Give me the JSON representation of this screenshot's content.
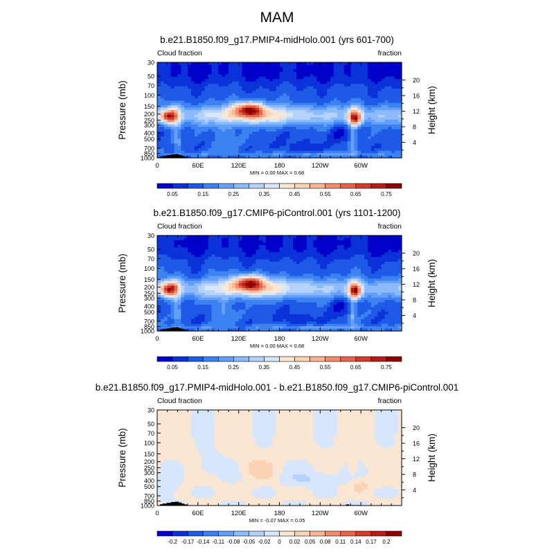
{
  "figure": {
    "title": "MAM",
    "background": "#ffffff"
  },
  "chart_data": [
    {
      "type": "heatmap",
      "title": "b.e21.B1850.f09_g17.PMIP4-midHolo.001 (yrs 601-700)",
      "left_label": "Cloud fraction",
      "right_label": "fraction",
      "ylabel": "Pressure (mb)",
      "y2label": "Height (km)",
      "x_ticks": [
        "0",
        "60E",
        "120E",
        "180",
        "120W",
        "60W"
      ],
      "x_tick_values": [
        0,
        60,
        120,
        180,
        240,
        300
      ],
      "xlim": [
        0,
        360
      ],
      "y_ticks": [
        "30",
        "50",
        "70",
        "100",
        "150",
        "200",
        "250",
        "300",
        "400",
        "500",
        "700",
        "850",
        "1000"
      ],
      "y_tick_values": [
        30,
        50,
        70,
        100,
        150,
        200,
        250,
        300,
        400,
        500,
        700,
        850,
        1000
      ],
      "ylim": [
        30,
        1000
      ],
      "y_scale": "log",
      "y2_ticks": [
        "20",
        "16",
        "12",
        "8",
        "4"
      ],
      "y2_tick_values": [
        20,
        16,
        12,
        8,
        4
      ],
      "stats": "MIN =   0.00  MAX =   0.68",
      "colorbar_labels": [
        "0.05",
        "0.15",
        "0.25",
        "0.35",
        "0.45",
        "0.55",
        "0.65",
        "0.75"
      ],
      "colorbar_colors": [
        "#0000c8",
        "#0a32d8",
        "#1e5ae6",
        "#3c82f0",
        "#64a0fa",
        "#8cbafa",
        "#b4d2fa",
        "#d7e6fa",
        "#fae6d2",
        "#fad2b4",
        "#fab496",
        "#f08c6e",
        "#e6644b",
        "#d23c28",
        "#b41e14",
        "#8c0000"
      ],
      "colorbar_levels": [
        0.05,
        0.1,
        0.15,
        0.2,
        0.25,
        0.3,
        0.35,
        0.4,
        0.45,
        0.5,
        0.55,
        0.6,
        0.65,
        0.7,
        0.75
      ],
      "min": 0.0,
      "max": 0.68
    },
    {
      "type": "heatmap",
      "title": "b.e21.B1850.f09_g17.CMIP6-piControl.001 (yrs 1101-1200)",
      "left_label": "Cloud fraction",
      "right_label": "fraction",
      "ylabel": "Pressure (mb)",
      "y2label": "Height (km)",
      "x_ticks": [
        "0",
        "60E",
        "120E",
        "180",
        "120W",
        "60W"
      ],
      "x_tick_values": [
        0,
        60,
        120,
        180,
        240,
        300
      ],
      "xlim": [
        0,
        360
      ],
      "y_ticks": [
        "30",
        "50",
        "70",
        "100",
        "150",
        "200",
        "250",
        "300",
        "400",
        "500",
        "700",
        "850",
        "1000"
      ],
      "y_tick_values": [
        30,
        50,
        70,
        100,
        150,
        200,
        250,
        300,
        400,
        500,
        700,
        850,
        1000
      ],
      "ylim": [
        30,
        1000
      ],
      "y_scale": "log",
      "y2_ticks": [
        "20",
        "16",
        "12",
        "8",
        "4"
      ],
      "y2_tick_values": [
        20,
        16,
        12,
        8,
        4
      ],
      "stats": "MIN =   0.00  MAX =   0.68",
      "colorbar_labels": [
        "0.05",
        "0.15",
        "0.25",
        "0.35",
        "0.45",
        "0.55",
        "0.65",
        "0.75"
      ],
      "colorbar_colors": [
        "#0000c8",
        "#0a32d8",
        "#1e5ae6",
        "#3c82f0",
        "#64a0fa",
        "#8cbafa",
        "#b4d2fa",
        "#d7e6fa",
        "#fae6d2",
        "#fad2b4",
        "#fab496",
        "#f08c6e",
        "#e6644b",
        "#d23c28",
        "#b41e14",
        "#8c0000"
      ],
      "colorbar_levels": [
        0.05,
        0.1,
        0.15,
        0.2,
        0.25,
        0.3,
        0.35,
        0.4,
        0.45,
        0.5,
        0.55,
        0.6,
        0.65,
        0.7,
        0.75
      ],
      "min": 0.0,
      "max": 0.68
    },
    {
      "type": "heatmap",
      "title": "b.e21.B1850.f09_g17.PMIP4-midHolo.001 - b.e21.B1850.f09_g17.CMIP6-piControl.001",
      "left_label": "Cloud fraction",
      "right_label": "fraction",
      "ylabel": "Pressure (mb)",
      "y2label": "Height (km)",
      "x_ticks": [
        "0",
        "60E",
        "120E",
        "180",
        "120W",
        "60W"
      ],
      "x_tick_values": [
        0,
        60,
        120,
        180,
        240,
        300
      ],
      "xlim": [
        0,
        360
      ],
      "y_ticks": [
        "30",
        "50",
        "70",
        "100",
        "150",
        "200",
        "250",
        "300",
        "400",
        "500",
        "700",
        "850",
        "1000"
      ],
      "y_tick_values": [
        30,
        50,
        70,
        100,
        150,
        200,
        250,
        300,
        400,
        500,
        700,
        850,
        1000
      ],
      "ylim": [
        30,
        1000
      ],
      "y_scale": "log",
      "y2_ticks": [
        "20",
        "16",
        "12",
        "8",
        "4"
      ],
      "y2_tick_values": [
        20,
        16,
        12,
        8,
        4
      ],
      "stats": "MIN =  -0.07  MAX =   0.05",
      "colorbar_labels": [
        "-0.2",
        "-0.17",
        "-0.14",
        "-0.11",
        "-0.08",
        "-0.05",
        "-0.02",
        "0",
        "0.02",
        "0.05",
        "0.08",
        "0.11",
        "0.14",
        "0.17",
        "0.2"
      ],
      "colorbar_colors": [
        "#0000c8",
        "#0a32d8",
        "#1e5ae6",
        "#3c82f0",
        "#64a0fa",
        "#8cbafa",
        "#b4d2fa",
        "#d7e6fa",
        "#fae6d2",
        "#fad2b4",
        "#fab496",
        "#f08c6e",
        "#e6644b",
        "#d23c28",
        "#b41e14",
        "#8c0000"
      ],
      "colorbar_levels": [
        -0.2,
        -0.17,
        -0.14,
        -0.11,
        -0.08,
        -0.05,
        -0.02,
        0,
        0.02,
        0.05,
        0.08,
        0.11,
        0.14,
        0.17,
        0.2
      ],
      "min": -0.07,
      "max": 0.05
    }
  ]
}
